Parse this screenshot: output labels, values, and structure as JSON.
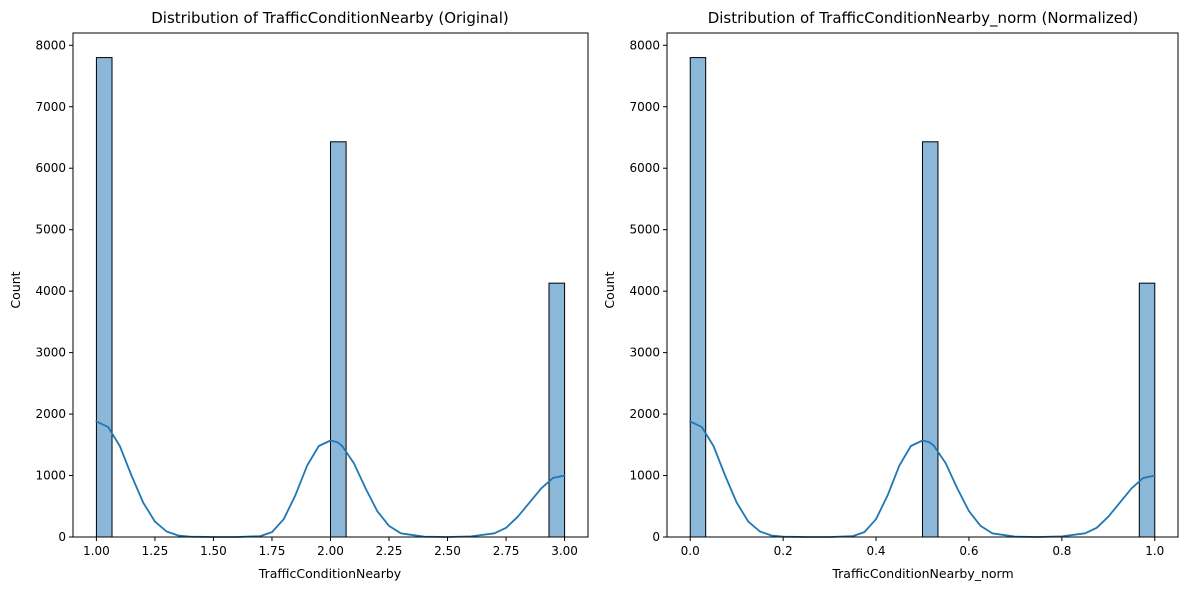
{
  "chart_data": [
    {
      "type": "bar",
      "title": "Distribution of TrafficConditionNearby (Original)",
      "xlabel": "TrafficConditionNearby",
      "ylabel": "Count",
      "xlim": [
        0.9,
        3.1
      ],
      "ylim": [
        0,
        8200
      ],
      "xticks": [
        1.0,
        1.25,
        1.5,
        1.75,
        2.0,
        2.25,
        2.5,
        2.75,
        3.0
      ],
      "xtick_labels": [
        "1.00",
        "1.25",
        "1.50",
        "1.75",
        "2.00",
        "2.25",
        "2.50",
        "2.75",
        "3.00"
      ],
      "yticks": [
        0,
        1000,
        2000,
        3000,
        4000,
        5000,
        6000,
        7000,
        8000
      ],
      "ytick_labels": [
        "0",
        "1000",
        "2000",
        "3000",
        "4000",
        "5000",
        "6000",
        "7000",
        "8000"
      ],
      "bin_range": [
        1.0,
        3.0
      ],
      "bins": 30,
      "bars": [
        {
          "x0": 1.0,
          "x1": 1.0667,
          "value": 7800
        },
        {
          "x0": 2.0,
          "x1": 2.0667,
          "value": 6430
        },
        {
          "x0": 2.9333,
          "x1": 3.0,
          "value": 4130
        }
      ],
      "kde": {
        "x": [
          1.0,
          1.05,
          1.1,
          1.15,
          1.2,
          1.25,
          1.3,
          1.35,
          1.4,
          1.5,
          1.6,
          1.7,
          1.75,
          1.8,
          1.85,
          1.9,
          1.95,
          2.0,
          2.03,
          2.05,
          2.1,
          2.15,
          2.2,
          2.25,
          2.3,
          2.4,
          2.5,
          2.6,
          2.7,
          2.75,
          2.8,
          2.85,
          2.9,
          2.95,
          3.0
        ],
        "y": [
          1880,
          1790,
          1480,
          1000,
          560,
          250,
          90,
          25,
          5,
          0,
          0,
          15,
          80,
          290,
          680,
          1160,
          1480,
          1570,
          1540,
          1480,
          1200,
          790,
          420,
          180,
          60,
          5,
          0,
          10,
          60,
          150,
          330,
          560,
          790,
          960,
          1000
        ]
      },
      "bar_color": "#8bb8d9",
      "line_color": "#1f77b4"
    },
    {
      "type": "bar",
      "title": "Distribution of TrafficConditionNearby_norm (Normalized)",
      "xlabel": "TrafficConditionNearby_norm",
      "ylabel": "Count",
      "xlim": [
        -0.05,
        1.05
      ],
      "ylim": [
        0,
        8200
      ],
      "xticks": [
        0.0,
        0.2,
        0.4,
        0.6,
        0.8,
        1.0
      ],
      "xtick_labels": [
        "0.0",
        "0.2",
        "0.4",
        "0.6",
        "0.8",
        "1.0"
      ],
      "yticks": [
        0,
        1000,
        2000,
        3000,
        4000,
        5000,
        6000,
        7000,
        8000
      ],
      "ytick_labels": [
        "0",
        "1000",
        "2000",
        "3000",
        "4000",
        "5000",
        "6000",
        "7000",
        "8000"
      ],
      "bin_range": [
        0.0,
        1.0
      ],
      "bins": 30,
      "bars": [
        {
          "x0": 0.0,
          "x1": 0.0333,
          "value": 7800
        },
        {
          "x0": 0.5,
          "x1": 0.5333,
          "value": 6430
        },
        {
          "x0": 0.9667,
          "x1": 1.0,
          "value": 4130
        }
      ],
      "kde": {
        "x": [
          0.0,
          0.025,
          0.05,
          0.075,
          0.1,
          0.125,
          0.15,
          0.175,
          0.2,
          0.25,
          0.3,
          0.35,
          0.375,
          0.4,
          0.425,
          0.45,
          0.475,
          0.5,
          0.515,
          0.525,
          0.55,
          0.575,
          0.6,
          0.625,
          0.65,
          0.7,
          0.75,
          0.8,
          0.85,
          0.875,
          0.9,
          0.925,
          0.95,
          0.975,
          1.0
        ],
        "y": [
          1880,
          1790,
          1480,
          1000,
          560,
          250,
          90,
          25,
          5,
          0,
          0,
          15,
          80,
          290,
          680,
          1160,
          1480,
          1570,
          1540,
          1480,
          1200,
          790,
          420,
          180,
          60,
          5,
          0,
          10,
          60,
          150,
          330,
          560,
          790,
          960,
          1000
        ]
      },
      "bar_color": "#8bb8d9",
      "line_color": "#1f77b4"
    }
  ]
}
